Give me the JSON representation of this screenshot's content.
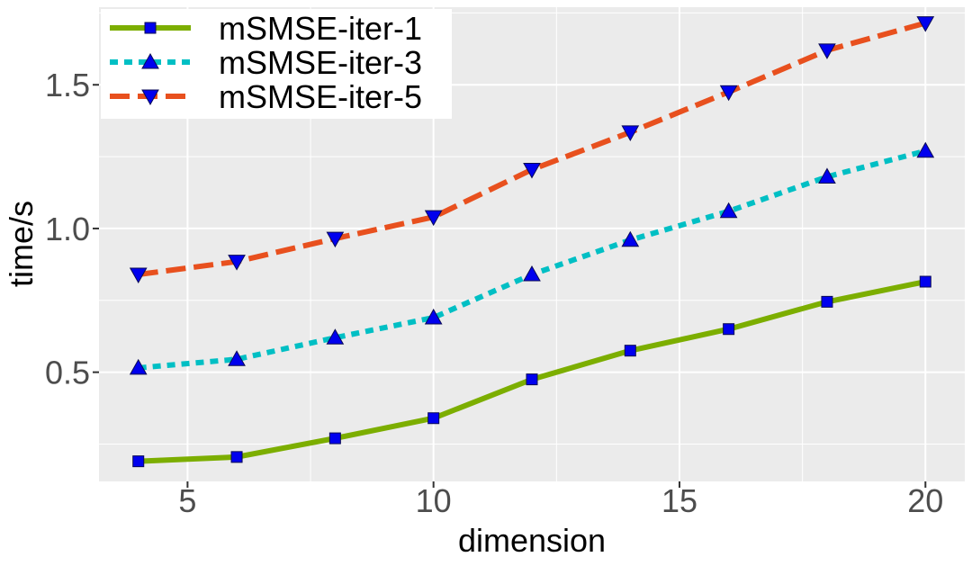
{
  "chart_data": {
    "type": "line",
    "title": "",
    "xlabel": "dimension",
    "ylabel": "time/s",
    "xlim": [
      3.2,
      20.8
    ],
    "ylim": [
      0.12,
      1.77
    ],
    "xticks": [
      5,
      10,
      15,
      20
    ],
    "xtick_labels": [
      "5",
      "10",
      "15",
      "20"
    ],
    "yticks": [
      0.5,
      1.0,
      1.5
    ],
    "ytick_labels": [
      "0.5",
      "1.0",
      "1.5"
    ],
    "grid": true,
    "legend_position": "top-left",
    "x": [
      4,
      6,
      8,
      10,
      12,
      14,
      16,
      18,
      20
    ],
    "series": [
      {
        "name": "mSMSE-iter-1",
        "values": [
          0.19,
          0.205,
          0.27,
          0.34,
          0.475,
          0.575,
          0.65,
          0.745,
          0.815
        ],
        "color": "#7cae00",
        "dash": "solid",
        "marker": "square"
      },
      {
        "name": "mSMSE-iter-3",
        "values": [
          0.515,
          0.545,
          0.62,
          0.69,
          0.84,
          0.96,
          1.06,
          1.18,
          1.27
        ],
        "color": "#00bfc4",
        "dash": "dotted",
        "marker": "triangle-up"
      },
      {
        "name": "mSMSE-iter-5",
        "values": [
          0.84,
          0.885,
          0.965,
          1.04,
          1.205,
          1.335,
          1.475,
          1.62,
          1.715
        ],
        "color": "#e8501e",
        "dash": "dashed",
        "marker": "triangle-down"
      }
    ],
    "colors": {
      "panel_background": "#ebebeb",
      "grid_major": "#ffffff",
      "marker_fill": "#0000ee"
    }
  }
}
